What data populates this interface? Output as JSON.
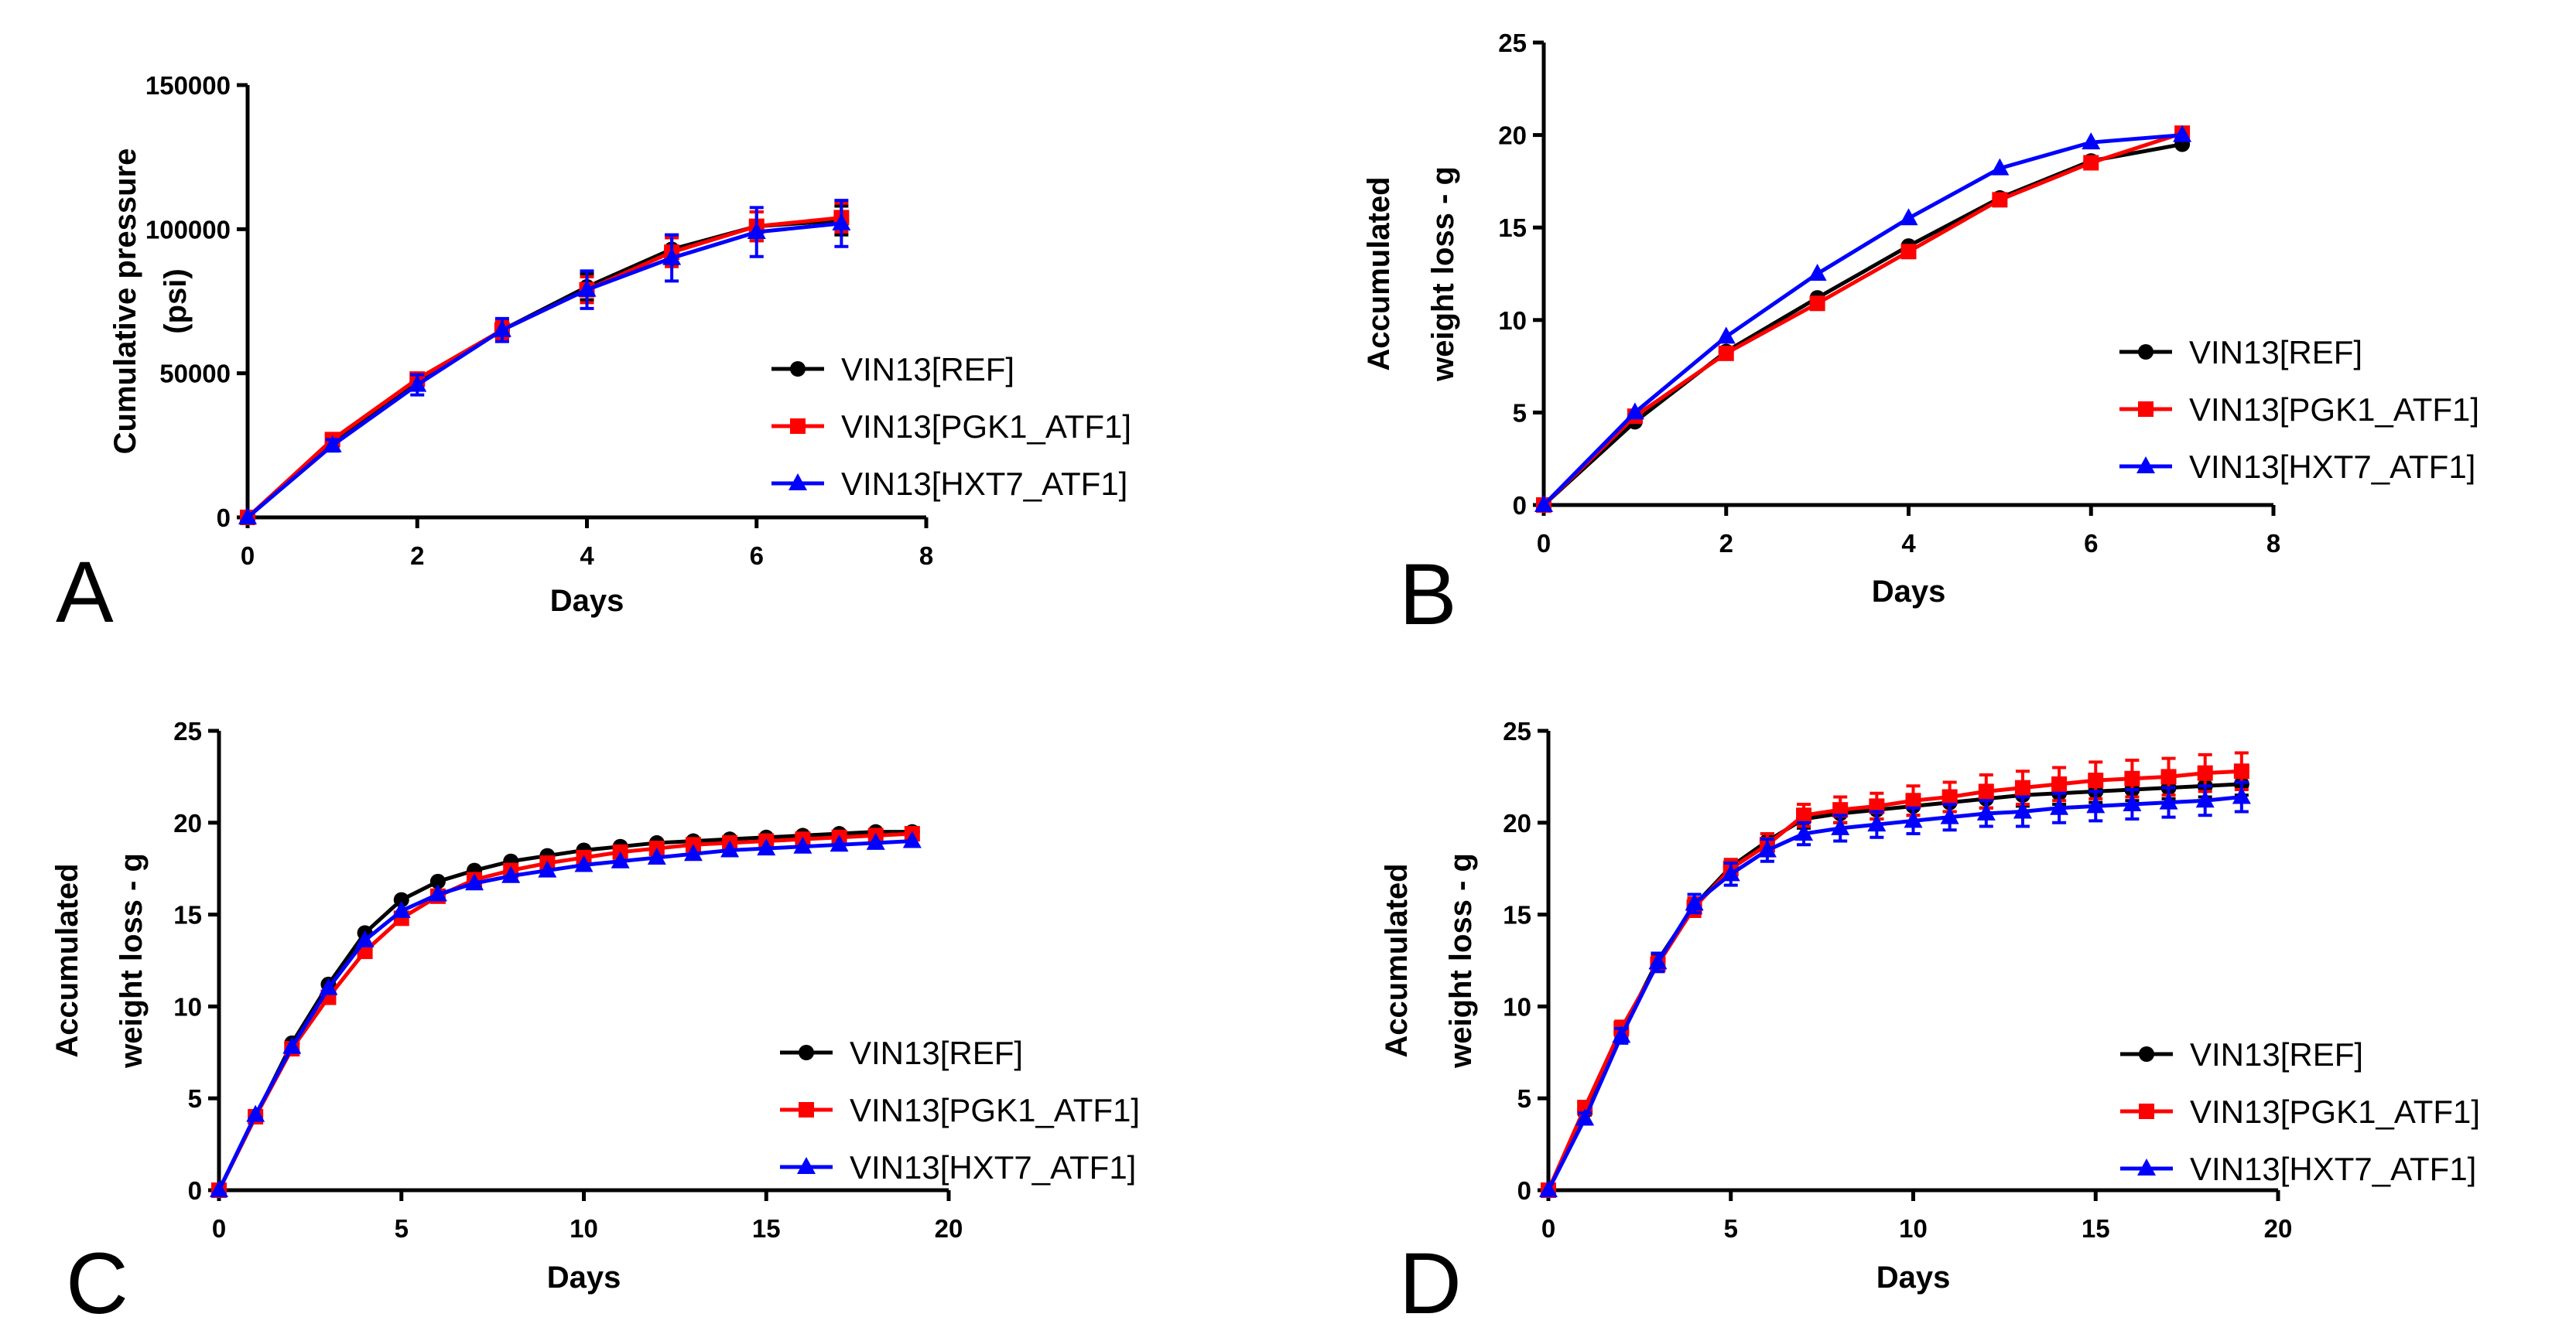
{
  "colors": {
    "ref": "#000000",
    "pgk1": "#ff0000",
    "hxt7": "#0000ff"
  },
  "chart_data": [
    {
      "panel": "A",
      "type": "line",
      "xlabel": "Days",
      "ylabel_lines": [
        "Cumulative pressure",
        "(psi)"
      ],
      "xlim": [
        0,
        8
      ],
      "ylim": [
        0,
        150000
      ],
      "xticks": [
        0,
        2,
        4,
        6,
        8
      ],
      "xtick_labels": [
        "0",
        "2",
        "4",
        "6",
        "8"
      ],
      "yticks": [
        0,
        50000,
        100000,
        150000
      ],
      "ytick_labels": [
        "0",
        "50000",
        "100000",
        "150000"
      ],
      "legend_position": "bottom-right",
      "series": [
        {
          "name": "VIN13[REF]",
          "color": "#000000",
          "marker": "circle",
          "x": [
            0,
            1,
            2,
            3,
            4,
            5,
            6,
            7
          ],
          "y": [
            0,
            26000,
            47000,
            65000,
            80000,
            93000,
            101000,
            103000
          ],
          "err": [
            0,
            1500,
            2000,
            3000,
            4500,
            5000,
            5000,
            5000
          ]
        },
        {
          "name": "VIN13[PGK1_ATF1]",
          "color": "#ff0000",
          "marker": "square",
          "x": [
            0,
            1,
            2,
            3,
            4,
            5,
            6,
            7
          ],
          "y": [
            0,
            27000,
            48000,
            65000,
            79000,
            92000,
            101000,
            104000
          ],
          "err": [
            0,
            1500,
            2000,
            3000,
            4500,
            5000,
            5000,
            5000
          ]
        },
        {
          "name": "VIN13[HXT7_ATF1]",
          "color": "#0000ff",
          "marker": "triangle",
          "x": [
            0,
            1,
            2,
            3,
            4,
            5,
            6,
            7
          ],
          "y": [
            0,
            25000,
            46000,
            65000,
            79000,
            90000,
            99000,
            102000
          ],
          "err": [
            0,
            2000,
            3500,
            4000,
            6500,
            8000,
            8500,
            8000
          ]
        }
      ]
    },
    {
      "panel": "B",
      "type": "line",
      "xlabel": "Days",
      "ylabel_lines": [
        "Accumulated",
        "weight loss - g"
      ],
      "xlim": [
        0,
        8
      ],
      "ylim": [
        0,
        25
      ],
      "xticks": [
        0,
        2,
        4,
        6,
        8
      ],
      "xtick_labels": [
        "0",
        "2",
        "4",
        "6",
        "8"
      ],
      "yticks": [
        0,
        5,
        10,
        15,
        20,
        25
      ],
      "ytick_labels": [
        "0",
        "5",
        "10",
        "15",
        "20",
        "25"
      ],
      "legend_position": "right",
      "series": [
        {
          "name": "VIN13[REF]",
          "color": "#000000",
          "marker": "circle",
          "x": [
            0,
            1,
            2,
            3,
            4,
            5,
            6,
            7
          ],
          "y": [
            0,
            4.5,
            8.3,
            11.2,
            14.0,
            16.6,
            18.6,
            19.5
          ],
          "err": [
            0,
            0,
            0,
            0,
            0,
            0,
            0,
            0
          ]
        },
        {
          "name": "VIN13[PGK1_ATF1]",
          "color": "#ff0000",
          "marker": "square",
          "x": [
            0,
            1,
            2,
            3,
            4,
            5,
            6,
            7
          ],
          "y": [
            0,
            4.8,
            8.2,
            10.9,
            13.7,
            16.5,
            18.5,
            20.1
          ],
          "err": [
            0,
            0,
            0,
            0,
            0,
            0,
            0,
            0
          ]
        },
        {
          "name": "VIN13[HXT7_ATF1]",
          "color": "#0000ff",
          "marker": "triangle",
          "x": [
            0,
            1,
            2,
            3,
            4,
            5,
            6,
            7
          ],
          "y": [
            0,
            5.0,
            9.1,
            12.5,
            15.5,
            18.2,
            19.6,
            20.0
          ],
          "err": [
            0,
            0,
            0,
            0,
            0,
            0,
            0,
            0
          ]
        }
      ]
    },
    {
      "panel": "C",
      "type": "line",
      "xlabel": "Days",
      "ylabel_lines": [
        "Accumulated",
        "weight loss - g"
      ],
      "xlim": [
        0,
        20
      ],
      "ylim": [
        0,
        25
      ],
      "xticks": [
        0,
        5,
        10,
        15,
        20
      ],
      "xtick_labels": [
        "0",
        "5",
        "10",
        "15",
        "20"
      ],
      "yticks": [
        0,
        5,
        10,
        15,
        20,
        25
      ],
      "ytick_labels": [
        "0",
        "5",
        "10",
        "15",
        "20",
        "25"
      ],
      "legend_position": "bottom-right",
      "series": [
        {
          "name": "VIN13[REF]",
          "color": "#000000",
          "marker": "circle",
          "x": [
            0,
            1,
            2,
            3,
            4,
            5,
            6,
            7,
            8,
            9,
            10,
            11,
            12,
            13,
            14,
            15,
            16,
            17,
            18,
            19
          ],
          "y": [
            0,
            4.0,
            8.0,
            11.2,
            14.0,
            15.8,
            16.8,
            17.4,
            17.9,
            18.2,
            18.5,
            18.7,
            18.9,
            19.0,
            19.1,
            19.2,
            19.3,
            19.4,
            19.5,
            19.5
          ],
          "err": [
            0,
            0,
            0,
            0,
            0,
            0,
            0,
            0,
            0,
            0,
            0,
            0,
            0,
            0,
            0,
            0,
            0,
            0,
            0,
            0
          ]
        },
        {
          "name": "VIN13[PGK1_ATF1]",
          "color": "#ff0000",
          "marker": "square",
          "x": [
            0,
            1,
            2,
            3,
            4,
            5,
            6,
            7,
            8,
            9,
            10,
            11,
            12,
            13,
            14,
            15,
            16,
            17,
            18,
            19
          ],
          "y": [
            0,
            4.0,
            7.7,
            10.5,
            13.0,
            14.8,
            16.0,
            16.9,
            17.4,
            17.8,
            18.1,
            18.4,
            18.6,
            18.8,
            18.9,
            19.0,
            19.1,
            19.2,
            19.3,
            19.4
          ],
          "err": [
            0,
            0,
            0,
            0,
            0,
            0,
            0,
            0,
            0,
            0,
            0,
            0,
            0,
            0,
            0,
            0,
            0,
            0,
            0,
            0
          ]
        },
        {
          "name": "VIN13[HXT7_ATF1]",
          "color": "#0000ff",
          "marker": "triangle",
          "x": [
            0,
            1,
            2,
            3,
            4,
            5,
            6,
            7,
            8,
            9,
            10,
            11,
            12,
            13,
            14,
            15,
            16,
            17,
            18,
            19
          ],
          "y": [
            0,
            4.1,
            7.8,
            11.0,
            13.6,
            15.2,
            16.1,
            16.7,
            17.1,
            17.4,
            17.7,
            17.9,
            18.1,
            18.3,
            18.5,
            18.6,
            18.7,
            18.8,
            18.9,
            19.0
          ],
          "err": [
            0,
            0,
            0,
            0,
            0,
            0,
            0,
            0,
            0,
            0,
            0,
            0,
            0,
            0,
            0,
            0,
            0,
            0,
            0,
            0
          ]
        }
      ]
    },
    {
      "panel": "D",
      "type": "line",
      "xlabel": "Days",
      "ylabel_lines": [
        "Accumulated",
        "weight loss - g"
      ],
      "xlim": [
        0,
        20
      ],
      "ylim": [
        0,
        25
      ],
      "xticks": [
        0,
        5,
        10,
        15,
        20
      ],
      "xtick_labels": [
        "0",
        "5",
        "10",
        "15",
        "20"
      ],
      "yticks": [
        0,
        5,
        10,
        15,
        20,
        25
      ],
      "ytick_labels": [
        "0",
        "5",
        "10",
        "15",
        "20",
        "25"
      ],
      "legend_position": "bottom-right",
      "series": [
        {
          "name": "VIN13[REF]",
          "color": "#000000",
          "marker": "circle",
          "x": [
            0,
            1,
            2,
            3,
            4,
            5,
            6,
            7,
            8,
            9,
            10,
            11,
            12,
            13,
            14,
            15,
            16,
            17,
            18,
            19
          ],
          "y": [
            0,
            4.3,
            8.6,
            12.5,
            15.5,
            17.6,
            19.0,
            20.2,
            20.5,
            20.7,
            20.9,
            21.1,
            21.3,
            21.5,
            21.6,
            21.7,
            21.8,
            21.9,
            22.0,
            22.1
          ],
          "err": [
            0,
            0.2,
            0.3,
            0.3,
            0.4,
            0.4,
            0.4,
            0.5,
            0.5,
            0.5,
            0.5,
            0.5,
            0.5,
            0.6,
            0.6,
            0.6,
            0.6,
            0.6,
            0.6,
            0.6
          ]
        },
        {
          "name": "VIN13[PGK1_ATF1]",
          "color": "#ff0000",
          "marker": "square",
          "x": [
            0,
            1,
            2,
            3,
            4,
            5,
            6,
            7,
            8,
            9,
            10,
            11,
            12,
            13,
            14,
            15,
            16,
            17,
            18,
            19
          ],
          "y": [
            0,
            4.5,
            8.8,
            12.3,
            15.4,
            17.5,
            18.8,
            20.4,
            20.7,
            20.9,
            21.2,
            21.4,
            21.7,
            21.9,
            22.1,
            22.3,
            22.4,
            22.5,
            22.7,
            22.8
          ],
          "err": [
            0,
            0.3,
            0.4,
            0.4,
            0.5,
            0.5,
            0.6,
            0.6,
            0.7,
            0.7,
            0.8,
            0.8,
            0.9,
            0.9,
            0.9,
            1.0,
            1.0,
            1.0,
            1.0,
            1.0
          ]
        },
        {
          "name": "VIN13[HXT7_ATF1]",
          "color": "#0000ff",
          "marker": "triangle",
          "x": [
            0,
            1,
            2,
            3,
            4,
            5,
            6,
            7,
            8,
            9,
            10,
            11,
            12,
            13,
            14,
            15,
            16,
            17,
            18,
            19
          ],
          "y": [
            0,
            3.9,
            8.4,
            12.4,
            15.6,
            17.2,
            18.5,
            19.4,
            19.7,
            19.9,
            20.1,
            20.3,
            20.5,
            20.6,
            20.8,
            20.9,
            21.0,
            21.1,
            21.2,
            21.4
          ],
          "err": [
            0,
            0.3,
            0.4,
            0.5,
            0.5,
            0.6,
            0.6,
            0.6,
            0.7,
            0.7,
            0.7,
            0.7,
            0.7,
            0.8,
            0.8,
            0.8,
            0.8,
            0.8,
            0.8,
            0.8
          ]
        }
      ]
    }
  ]
}
